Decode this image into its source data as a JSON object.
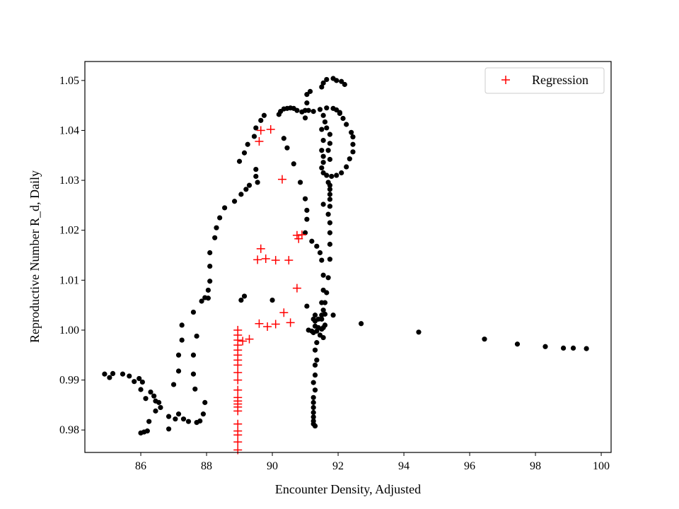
{
  "chart_data": {
    "type": "scatter",
    "xlabel": "Encounter Density, Adjusted",
    "ylabel": "Reproductive Number R_d, Daily",
    "xlim": [
      84.3,
      100.3
    ],
    "ylim": [
      0.9755,
      1.0538
    ],
    "xticks": [
      86,
      88,
      90,
      92,
      94,
      96,
      98,
      100
    ],
    "yticks": [
      0.98,
      0.99,
      1.0,
      1.01,
      1.02,
      1.03,
      1.04,
      1.05
    ],
    "ytick_labels": [
      "0.98",
      "0.99",
      "1.00",
      "1.01",
      "1.02",
      "1.03",
      "1.04",
      "1.05"
    ],
    "grid": false,
    "legend_position": "upper right",
    "series": [
      {
        "marker": "dot",
        "color": "#000000",
        "points": [
          [
            84.9,
            0.9912
          ],
          [
            85.05,
            0.9905
          ],
          [
            85.15,
            0.9913
          ],
          [
            85.45,
            0.9912
          ],
          [
            85.65,
            0.9908
          ],
          [
            85.8,
            0.9897
          ],
          [
            85.95,
            0.9903
          ],
          [
            86.05,
            0.9896
          ],
          [
            86.0,
            0.9881
          ],
          [
            86.15,
            0.9863
          ],
          [
            86.3,
            0.9876
          ],
          [
            86.4,
            0.9868
          ],
          [
            86.45,
            0.9858
          ],
          [
            86.55,
            0.9855
          ],
          [
            86.6,
            0.9845
          ],
          [
            86.45,
            0.9838
          ],
          [
            86.25,
            0.9817
          ],
          [
            86.1,
            0.9796
          ],
          [
            86.2,
            0.9798
          ],
          [
            86.0,
            0.9794
          ],
          [
            86.85,
            0.9802
          ],
          [
            86.85,
            0.9827
          ],
          [
            87.05,
            0.9822
          ],
          [
            87.15,
            0.9832
          ],
          [
            87.3,
            0.9822
          ],
          [
            87.45,
            0.9817
          ],
          [
            87.7,
            0.9815
          ],
          [
            87.8,
            0.9818
          ],
          [
            87.9,
            0.9832
          ],
          [
            87.95,
            0.9855
          ],
          [
            87.65,
            0.9882
          ],
          [
            87.6,
            0.9912
          ],
          [
            87.6,
            0.995
          ],
          [
            87.7,
            0.9988
          ],
          [
            87.6,
            1.0036
          ],
          [
            87.0,
            0.9891
          ],
          [
            87.15,
            0.9918
          ],
          [
            87.15,
            0.995
          ],
          [
            87.25,
            0.998
          ],
          [
            87.25,
            1.001
          ],
          [
            87.85,
            1.0058
          ],
          [
            87.95,
            1.0065
          ],
          [
            88.05,
            1.0064
          ],
          [
            88.05,
            1.008
          ],
          [
            88.1,
            1.0098
          ],
          [
            88.1,
            1.0128
          ],
          [
            88.1,
            1.0155
          ],
          [
            88.25,
            1.0185
          ],
          [
            88.3,
            1.0205
          ],
          [
            88.4,
            1.0225
          ],
          [
            88.55,
            1.0245
          ],
          [
            88.85,
            1.0258
          ],
          [
            89.05,
            1.0272
          ],
          [
            89.2,
            1.0282
          ],
          [
            89.3,
            1.029
          ],
          [
            89.55,
            1.0296
          ],
          [
            89.5,
            1.0308
          ],
          [
            89.5,
            1.0322
          ],
          [
            89.0,
            1.0338
          ],
          [
            89.15,
            1.0355
          ],
          [
            89.25,
            1.0372
          ],
          [
            89.45,
            1.0388
          ],
          [
            89.5,
            1.0405
          ],
          [
            89.65,
            1.042
          ],
          [
            89.75,
            1.043
          ],
          [
            89.15,
            1.0068
          ],
          [
            89.05,
            1.006
          ],
          [
            90.2,
            1.0432
          ],
          [
            90.25,
            1.0438
          ],
          [
            90.35,
            1.0443
          ],
          [
            90.45,
            1.0444
          ],
          [
            90.55,
            1.0445
          ],
          [
            90.65,
            1.0444
          ],
          [
            90.75,
            1.044
          ],
          [
            90.9,
            1.0437
          ],
          [
            91.1,
            1.044
          ],
          [
            91.25,
            1.0438
          ],
          [
            91.45,
            1.0442
          ],
          [
            91.65,
            1.0445
          ],
          [
            91.85,
            1.0444
          ],
          [
            91.95,
            1.0441
          ],
          [
            92.05,
            1.0434
          ],
          [
            90.35,
            1.0384
          ],
          [
            90.45,
            1.0365
          ],
          [
            90.65,
            1.0333
          ],
          [
            90.85,
            1.0296
          ],
          [
            91.0,
            1.0263
          ],
          [
            91.05,
            1.024
          ],
          [
            91.05,
            1.0222
          ],
          [
            91.0,
            1.0195
          ],
          [
            91.2,
            1.0178
          ],
          [
            91.35,
            1.0168
          ],
          [
            91.45,
            1.0155
          ],
          [
            91.5,
            1.014
          ],
          [
            91.55,
            1.011
          ],
          [
            91.55,
            1.008
          ],
          [
            91.5,
            1.0055
          ],
          [
            91.5,
            1.003
          ],
          [
            91.15,
            1.0478
          ],
          [
            91.05,
            1.0472
          ],
          [
            91.05,
            1.0455
          ],
          [
            91.0,
            1.044
          ],
          [
            91.0,
            1.0425
          ],
          [
            91.5,
            1.0487
          ],
          [
            91.55,
            1.0495
          ],
          [
            91.65,
            1.0502
          ],
          [
            91.85,
            1.0504
          ],
          [
            91.95,
            1.05
          ],
          [
            92.1,
            1.0498
          ],
          [
            92.2,
            1.0492
          ],
          [
            91.5,
            1.0402
          ],
          [
            91.55,
            1.038
          ],
          [
            91.5,
            1.036
          ],
          [
            91.55,
            1.0348
          ],
          [
            91.55,
            1.0336
          ],
          [
            91.5,
            1.0325
          ],
          [
            91.55,
            1.0315
          ],
          [
            91.65,
            1.031
          ],
          [
            91.8,
            1.0308
          ],
          [
            91.95,
            1.031
          ],
          [
            92.1,
            1.0315
          ],
          [
            92.25,
            1.0327
          ],
          [
            92.35,
            1.0343
          ],
          [
            92.45,
            1.0357
          ],
          [
            92.45,
            1.0372
          ],
          [
            92.45,
            1.0387
          ],
          [
            92.4,
            1.0396
          ],
          [
            92.25,
            1.0412
          ],
          [
            92.15,
            1.0424
          ],
          [
            92.05,
            1.0436
          ],
          [
            91.55,
            1.043
          ],
          [
            91.6,
            1.0417
          ],
          [
            91.65,
            1.0405
          ],
          [
            91.75,
            1.0392
          ],
          [
            91.75,
            1.0374
          ],
          [
            91.7,
            1.036
          ],
          [
            91.75,
            1.0342
          ],
          [
            91.55,
            1.0252
          ],
          [
            91.7,
            1.0296
          ],
          [
            91.75,
            1.029
          ],
          [
            91.75,
            1.0282
          ],
          [
            91.75,
            1.0272
          ],
          [
            91.75,
            1.0262
          ],
          [
            91.75,
            1.0248
          ],
          [
            91.7,
            1.0232
          ],
          [
            91.75,
            1.0215
          ],
          [
            91.75,
            1.0195
          ],
          [
            91.75,
            1.0172
          ],
          [
            91.75,
            1.0142
          ],
          [
            91.7,
            1.0105
          ],
          [
            91.65,
            1.0075
          ],
          [
            91.6,
            1.0055
          ],
          [
            91.55,
            1.004
          ],
          [
            91.6,
            1.0032
          ],
          [
            91.6,
            1.001
          ],
          [
            91.55,
            1.0005
          ],
          [
            91.5,
            1.0002
          ],
          [
            91.4,
            1.0005
          ],
          [
            91.3,
            1.0008
          ],
          [
            91.25,
            1.0022
          ],
          [
            91.3,
            1.003
          ],
          [
            91.4,
            1.0022
          ],
          [
            91.5,
            1.0022
          ],
          [
            91.3,
            1.0018
          ],
          [
            91.05,
            1.0048
          ],
          [
            91.1,
            1.0
          ],
          [
            91.2,
            0.9998
          ],
          [
            91.25,
            0.9995
          ],
          [
            91.35,
            0.9998
          ],
          [
            91.45,
            0.999
          ],
          [
            91.55,
            0.9985
          ],
          [
            91.35,
            0.9975
          ],
          [
            91.3,
            0.996
          ],
          [
            91.35,
            0.994
          ],
          [
            91.3,
            0.993
          ],
          [
            91.3,
            0.991
          ],
          [
            91.25,
            0.9895
          ],
          [
            91.3,
            0.988
          ],
          [
            91.25,
            0.9865
          ],
          [
            91.25,
            0.9855
          ],
          [
            91.25,
            0.9845
          ],
          [
            91.25,
            0.9835
          ],
          [
            91.25,
            0.9826
          ],
          [
            91.25,
            0.9818
          ],
          [
            91.25,
            0.9812
          ],
          [
            91.3,
            0.9808
          ],
          [
            91.85,
            1.003
          ],
          [
            90.0,
            1.006
          ],
          [
            92.7,
            1.0013
          ],
          [
            94.45,
            0.9996
          ],
          [
            96.45,
            0.9982
          ],
          [
            97.45,
            0.9972
          ],
          [
            98.3,
            0.9967
          ],
          [
            98.85,
            0.9964
          ],
          [
            99.15,
            0.9964
          ],
          [
            99.55,
            0.9963
          ]
        ]
      },
      {
        "name": "Regression",
        "marker": "plus",
        "color": "#ff0000",
        "points": [
          [
            88.95,
            1.0
          ],
          [
            88.95,
            0.999
          ],
          [
            88.95,
            0.998
          ],
          [
            88.95,
            0.997
          ],
          [
            88.95,
            0.996
          ],
          [
            88.95,
            0.995
          ],
          [
            88.95,
            0.994
          ],
          [
            88.95,
            0.993
          ],
          [
            88.95,
            0.9915
          ],
          [
            88.95,
            0.99
          ],
          [
            88.95,
            0.988
          ],
          [
            88.95,
            0.9865
          ],
          [
            88.95,
            0.9858
          ],
          [
            88.95,
            0.9852
          ],
          [
            88.95,
            0.9846
          ],
          [
            88.95,
            0.9838
          ],
          [
            88.95,
            0.9812
          ],
          [
            88.95,
            0.9798
          ],
          [
            88.95,
            0.979
          ],
          [
            88.95,
            0.9776
          ],
          [
            88.95,
            0.976
          ],
          [
            89.1,
            0.9978
          ],
          [
            89.3,
            0.9982
          ],
          [
            89.6,
            1.0013
          ],
          [
            89.85,
            1.0007
          ],
          [
            90.1,
            1.0012
          ],
          [
            90.35,
            1.0035
          ],
          [
            90.55,
            1.0015
          ],
          [
            90.75,
            1.0084
          ],
          [
            89.55,
            1.0141
          ],
          [
            89.65,
            1.0163
          ],
          [
            89.8,
            1.0143
          ],
          [
            90.1,
            1.014
          ],
          [
            90.5,
            1.014
          ],
          [
            90.75,
            1.019
          ],
          [
            90.8,
            1.0183
          ],
          [
            90.9,
            1.0191
          ],
          [
            89.6,
            1.0378
          ],
          [
            89.65,
            1.04
          ],
          [
            89.95,
            1.0402
          ],
          [
            90.3,
            1.0302
          ]
        ]
      }
    ]
  }
}
